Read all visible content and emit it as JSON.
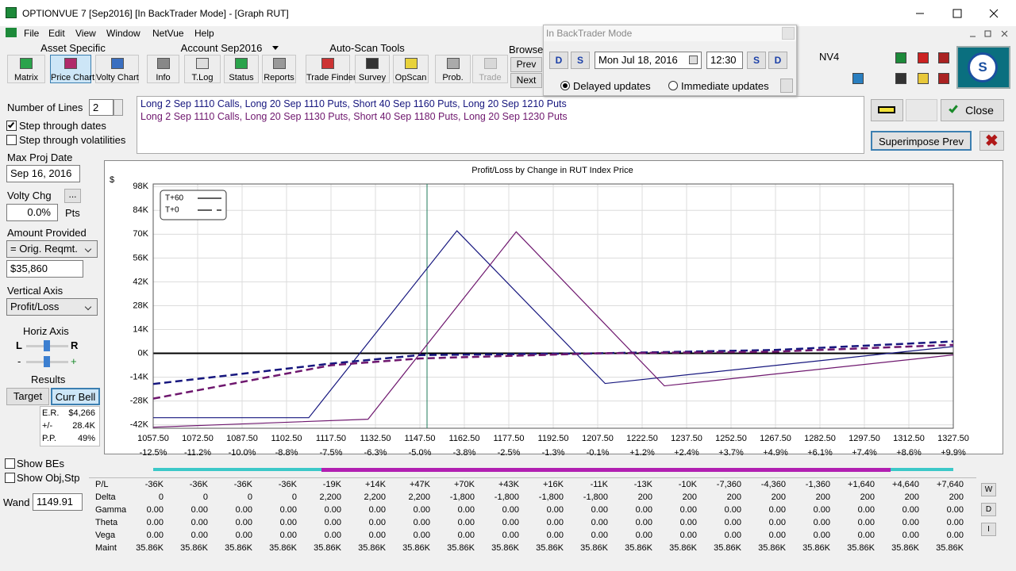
{
  "window": {
    "title": "OPTIONVUE 7   [Sep2016]   [In BackTrader Mode] - [Graph RUT]"
  },
  "menu": [
    "File",
    "Edit",
    "View",
    "Window",
    "NetVue",
    "Help"
  ],
  "toolbar": {
    "asset": {
      "label": "Asset Specific",
      "buttons": [
        "Matrix",
        "Price Chart",
        "Volty Chart"
      ]
    },
    "account": {
      "label": "Account Sep2016",
      "buttons": [
        "Info",
        "T.Log",
        "Status",
        "Reports"
      ]
    },
    "autoscan": {
      "label": "Auto-Scan Tools",
      "buttons": [
        "Trade Finder",
        "Survey",
        "OpScan"
      ]
    },
    "other": [
      "Prob.",
      "Trade"
    ],
    "browse": {
      "label": "Browse",
      "buttons": [
        "Prev",
        "Next"
      ]
    }
  },
  "backtrader": {
    "title": "In BackTrader Mode",
    "nav": [
      "D",
      "S",
      "S",
      "D"
    ],
    "date": "Mon Jul 18, 2016",
    "time": "12:30",
    "options": [
      "Delayed updates",
      "Immediate updates"
    ]
  },
  "profile": "NV4",
  "left": {
    "lines_label": "Number of Lines",
    "lines_value": "2",
    "step_dates": "Step through dates",
    "step_vols": "Step through volatilities",
    "max_proj_label": "Max Proj Date",
    "max_proj_value": "Sep 16, 2016",
    "volty_label": "Volty Chg",
    "volty_button": "...",
    "volty_value": "0.0%",
    "volty_unit": "Pts",
    "amount_label": "Amount Provided",
    "amount_select": "= Orig. Reqmt.",
    "amount_value": "$35,860",
    "vaxis_label": "Vertical Axis",
    "vaxis_value": "Profit/Loss",
    "haxis_label": "Horiz Axis",
    "haxis_ends": [
      "L",
      "R"
    ],
    "haxis_zoom": [
      "-",
      "+"
    ],
    "results_label": "Results",
    "results_buttons": [
      "Target",
      "Curr Bell"
    ],
    "results": [
      [
        "E.R.",
        "$4,266"
      ],
      [
        "+/-",
        "28.4K"
      ],
      [
        "P.P.",
        "49%"
      ]
    ],
    "show_bes": "Show BEs",
    "show_obj": "Show Obj,Stp",
    "wand_label": "Wand"
  },
  "positions": [
    "Long 2 Sep 1110 Calls, Long 20 Sep 1110 Puts, Short 40 Sep 1160 Puts, Long 20 Sep 1210 Puts",
    "Long 2 Sep 1110 Calls, Long 20 Sep 1130 Puts, Short 40 Sep 1180 Puts, Long 20 Sep 1230 Puts"
  ],
  "buttons": {
    "close": "Close",
    "superimpose": "Superimpose Prev"
  },
  "chart_data": {
    "type": "line",
    "title": "Profit/Loss by Change in RUT Index Price",
    "y_label": "$",
    "xlim": [
      1057.5,
      1327.5
    ],
    "ylim": [
      -44000,
      99500
    ],
    "xticks": [
      {
        "value": 1057.5,
        "label": "1057.50"
      },
      {
        "value": 1072.5,
        "label": "1072.50"
      },
      {
        "value": 1087.5,
        "label": "1087.50"
      },
      {
        "value": 1102.5,
        "label": "1102.50"
      },
      {
        "value": 1117.5,
        "label": "1117.50"
      },
      {
        "value": 1132.5,
        "label": "1132.50"
      },
      {
        "value": 1147.5,
        "label": "1147.50"
      },
      {
        "value": 1162.5,
        "label": "1162.50"
      },
      {
        "value": 1177.5,
        "label": "1177.50"
      },
      {
        "value": 1192.5,
        "label": "1192.50"
      },
      {
        "value": 1207.5,
        "label": "1207.50"
      },
      {
        "value": 1222.5,
        "label": "1222.50"
      },
      {
        "value": 1237.5,
        "label": "1237.50"
      },
      {
        "value": 1252.5,
        "label": "1252.50"
      },
      {
        "value": 1267.5,
        "label": "1267.50"
      },
      {
        "value": 1282.5,
        "label": "1282.50"
      },
      {
        "value": 1297.5,
        "label": "1297.50"
      },
      {
        "value": 1312.5,
        "label": "1312.50"
      },
      {
        "value": 1327.5,
        "label": "1327.50"
      }
    ],
    "xtick_pct": [
      "-12.5%",
      "-11.2%",
      "-10.0%",
      "-8.8%",
      "-7.5%",
      "-6.3%",
      "-5.0%",
      "-3.8%",
      "-2.5%",
      "-1.3%",
      "-0.1%",
      "+1.2%",
      "+2.4%",
      "+3.7%",
      "+4.9%",
      "+6.1%",
      "+7.4%",
      "+8.6%",
      "+9.9%"
    ],
    "yticks": [
      {
        "value": -42000,
        "label": "-42K"
      },
      {
        "value": -28000,
        "label": "-28K"
      },
      {
        "value": -14000,
        "label": "-14K"
      },
      {
        "value": 0,
        "label": "0K"
      },
      {
        "value": 14000,
        "label": "14K"
      },
      {
        "value": 28000,
        "label": "28K"
      },
      {
        "value": 42000,
        "label": "42K"
      },
      {
        "value": 56000,
        "label": "56K"
      },
      {
        "value": 70000,
        "label": "70K"
      },
      {
        "value": 84000,
        "label": "84K"
      },
      {
        "value": 98000,
        "label": "98K"
      }
    ],
    "grid": true,
    "legend": [
      {
        "label": "T+60",
        "dash": false
      },
      {
        "label": "T+0",
        "dash": true
      }
    ],
    "cursor": 1149.91,
    "series": [
      {
        "color": "#16167e",
        "dash": false,
        "x": [
          1057.5,
          1110,
          1160,
          1210,
          1327.5
        ],
        "values": [
          -37800,
          -37800,
          72000,
          -17700,
          4000
        ]
      },
      {
        "color": "#6e176e",
        "dash": false,
        "x": [
          1057.5,
          1130,
          1180,
          1230,
          1327.5
        ],
        "values": [
          -43400,
          -38700,
          71400,
          -19100,
          -900
        ]
      },
      {
        "color": "#16167e",
        "dash": true,
        "x": [
          1057.5,
          1117.5,
          1147.5,
          1207.5,
          1267.5,
          1327.5
        ],
        "values": [
          -18000,
          -6000,
          -1000,
          0,
          2000,
          7000
        ]
      },
      {
        "color": "#6e176e",
        "dash": true,
        "x": [
          1057.5,
          1117.5,
          1147.5,
          1207.5,
          1267.5,
          1327.5
        ],
        "values": [
          -26600,
          -7000,
          -3000,
          0,
          1000,
          5000
        ]
      }
    ]
  },
  "table": {
    "row_labels": [
      "P/L",
      "Delta",
      "Gamma",
      "Theta",
      "Vega",
      "Maint"
    ],
    "rows": [
      [
        "-36K",
        "-36K",
        "-36K",
        "-36K",
        "-19K",
        "+14K",
        "+47K",
        "+70K",
        "+43K",
        "+16K",
        "-11K",
        "-13K",
        "-10K",
        "-7,360",
        "-4,360",
        "-1,360",
        "+1,640",
        "+4,640",
        "+7,640"
      ],
      [
        "0",
        "0",
        "0",
        "0",
        "2,200",
        "2,200",
        "2,200",
        "-1,800",
        "-1,800",
        "-1,800",
        "-1,800",
        "200",
        "200",
        "200",
        "200",
        "200",
        "200",
        "200",
        "200"
      ],
      [
        "0.00",
        "0.00",
        "0.00",
        "0.00",
        "0.00",
        "0.00",
        "0.00",
        "0.00",
        "0.00",
        "0.00",
        "0.00",
        "0.00",
        "0.00",
        "0.00",
        "0.00",
        "0.00",
        "0.00",
        "0.00",
        "0.00"
      ],
      [
        "0.00",
        "0.00",
        "0.00",
        "0.00",
        "0.00",
        "0.00",
        "0.00",
        "0.00",
        "0.00",
        "0.00",
        "0.00",
        "0.00",
        "0.00",
        "0.00",
        "0.00",
        "0.00",
        "0.00",
        "0.00",
        "0.00"
      ],
      [
        "0.00",
        "0.00",
        "0.00",
        "0.00",
        "0.00",
        "0.00",
        "0.00",
        "0.00",
        "0.00",
        "0.00",
        "0.00",
        "0.00",
        "0.00",
        "0.00",
        "0.00",
        "0.00",
        "0.00",
        "0.00",
        "0.00"
      ],
      [
        "35.86K",
        "35.86K",
        "35.86K",
        "35.86K",
        "35.86K",
        "35.86K",
        "35.86K",
        "35.86K",
        "35.86K",
        "35.86K",
        "35.86K",
        "35.86K",
        "35.86K",
        "35.86K",
        "35.86K",
        "35.86K",
        "35.86K",
        "35.86K",
        "35.86K"
      ]
    ]
  },
  "side_buttons": [
    "W",
    "D",
    "I"
  ]
}
